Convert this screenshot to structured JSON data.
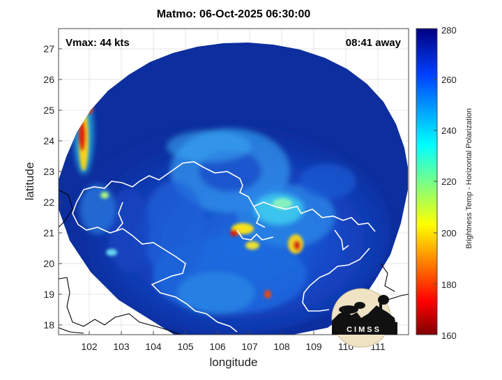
{
  "header": {
    "title": "Matmo: 06-Oct-2025 06:30:00"
  },
  "annotations": {
    "vmax": "Vmax: 44 kts",
    "time_away": "08:41 away"
  },
  "axes": {
    "xlabel": "longitude",
    "ylabel": "latitude",
    "x_ticks": [
      "102",
      "103",
      "104",
      "105",
      "106",
      "107",
      "108",
      "109",
      "110",
      "111"
    ],
    "y_ticks": [
      "18",
      "19",
      "20",
      "21",
      "22",
      "23",
      "24",
      "25",
      "26",
      "27"
    ],
    "xlim": [
      101.0,
      111.9
    ],
    "ylim": [
      17.7,
      27.6
    ]
  },
  "colorbar": {
    "label": "Brightness Temp - Horizontal Polarization",
    "ticks": [
      "160",
      "180",
      "200",
      "220",
      "240",
      "260",
      "280"
    ],
    "range": [
      160,
      280
    ],
    "colormap": "jet"
  },
  "logo": {
    "text": "CIMSS"
  },
  "colors": {
    "background_cold": "#0c2a96",
    "coast_line": "#ffffff",
    "outline_line": "#000000"
  }
}
